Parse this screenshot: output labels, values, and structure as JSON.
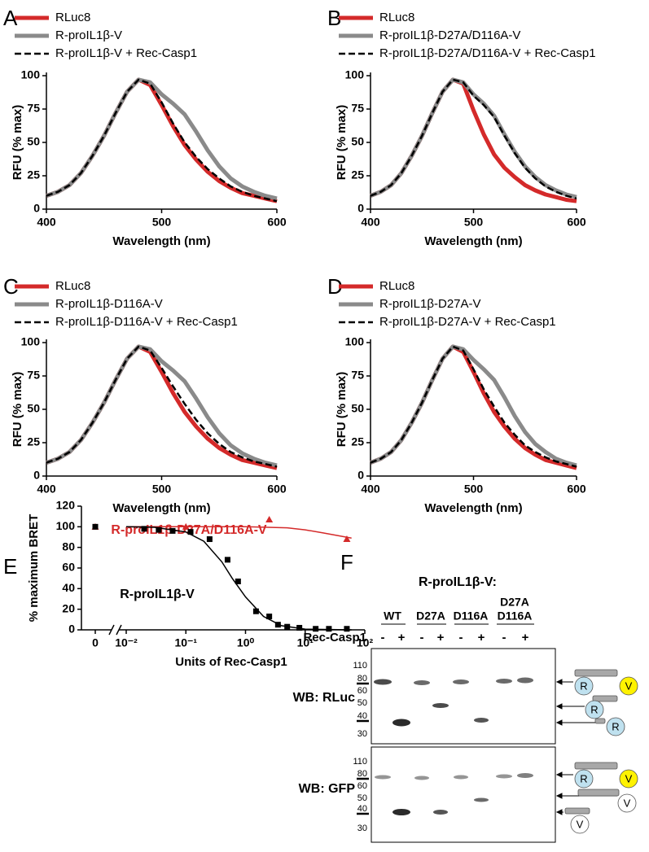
{
  "chart_data": [
    {
      "type": "line",
      "panel": "A",
      "x_label": "Wavelength (nm)",
      "y_label": "RFU (% max)",
      "x": [
        400,
        410,
        420,
        430,
        440,
        450,
        460,
        470,
        480,
        490,
        500,
        510,
        520,
        530,
        540,
        550,
        560,
        570,
        580,
        590,
        600
      ],
      "xlim": [
        400,
        600
      ],
      "xticks": [
        400,
        500,
        600
      ],
      "ylim": [
        0,
        100
      ],
      "yticks": [
        0,
        25,
        50,
        75,
        100
      ],
      "series": [
        {
          "name": "RLuc8",
          "color": "#d42a2a",
          "dash": false,
          "values": [
            10,
            13,
            18,
            27,
            40,
            55,
            72,
            88,
            97,
            93,
            78,
            62,
            48,
            37,
            28,
            21,
            16,
            12,
            10,
            8,
            6
          ]
        },
        {
          "name": "R-proIL1β-V",
          "color": "#8a8a8a",
          "dash": false,
          "values": [
            10,
            13,
            18,
            27,
            40,
            55,
            72,
            88,
            97,
            95,
            86,
            79,
            71,
            58,
            44,
            32,
            23,
            17,
            13,
            10,
            8
          ]
        },
        {
          "name": "R-proIL1β-V + Rec-Casp1",
          "color": "#000000",
          "dash": true,
          "values": [
            10,
            13,
            18,
            27,
            40,
            55,
            72,
            88,
            97,
            94,
            80,
            64,
            50,
            39,
            30,
            23,
            17,
            13,
            10,
            8,
            6
          ]
        }
      ]
    },
    {
      "type": "line",
      "panel": "B",
      "x_label": "Wavelength (nm)",
      "y_label": "RFU (% max)",
      "x": [
        400,
        410,
        420,
        430,
        440,
        450,
        460,
        470,
        480,
        490,
        500,
        510,
        520,
        530,
        540,
        550,
        560,
        570,
        580,
        590,
        600
      ],
      "xlim": [
        400,
        600
      ],
      "xticks": [
        400,
        500,
        600
      ],
      "ylim": [
        0,
        100
      ],
      "yticks": [
        0,
        25,
        50,
        75,
        100
      ],
      "series": [
        {
          "name": "RLuc8",
          "color": "#d42a2a",
          "dash": false,
          "values": [
            10,
            13,
            18,
            27,
            40,
            55,
            72,
            88,
            97,
            94,
            74,
            56,
            41,
            31,
            24,
            18,
            14,
            11,
            9,
            7,
            6
          ]
        },
        {
          "name": "R-proIL1β-D27A/D116A-V",
          "color": "#8a8a8a",
          "dash": false,
          "values": [
            10,
            13,
            18,
            27,
            40,
            55,
            72,
            88,
            97,
            95,
            86,
            79,
            70,
            56,
            43,
            32,
            24,
            18,
            14,
            11,
            9
          ]
        },
        {
          "name": "R-proIL1β-D27A/D116A-V + Rec-Casp1",
          "color": "#000000",
          "dash": true,
          "values": [
            10,
            13,
            18,
            27,
            40,
            55,
            72,
            88,
            97,
            95,
            85,
            78,
            69,
            55,
            42,
            31,
            23,
            17,
            13,
            10,
            8
          ]
        }
      ]
    },
    {
      "type": "line",
      "panel": "C",
      "x_label": "Wavelength (nm)",
      "y_label": "RFU (% max)",
      "x": [
        400,
        410,
        420,
        430,
        440,
        450,
        460,
        470,
        480,
        490,
        500,
        510,
        520,
        530,
        540,
        550,
        560,
        570,
        580,
        590,
        600
      ],
      "xlim": [
        400,
        600
      ],
      "xticks": [
        400,
        500,
        600
      ],
      "ylim": [
        0,
        100
      ],
      "yticks": [
        0,
        25,
        50,
        75,
        100
      ],
      "series": [
        {
          "name": "RLuc8",
          "color": "#d42a2a",
          "dash": false,
          "values": [
            10,
            13,
            18,
            27,
            40,
            55,
            72,
            88,
            97,
            93,
            78,
            62,
            48,
            37,
            28,
            21,
            16,
            12,
            10,
            8,
            6
          ]
        },
        {
          "name": "R-proIL1β-D116A-V",
          "color": "#8a8a8a",
          "dash": false,
          "values": [
            10,
            13,
            18,
            27,
            40,
            55,
            72,
            88,
            97,
            95,
            86,
            79,
            71,
            58,
            44,
            32,
            23,
            17,
            13,
            10,
            8
          ]
        },
        {
          "name": "R-proIL1β-D116A-V + Rec-Casp1",
          "color": "#000000",
          "dash": true,
          "values": [
            10,
            13,
            18,
            27,
            40,
            55,
            72,
            88,
            97,
            94,
            81,
            67,
            54,
            42,
            32,
            24,
            18,
            14,
            11,
            9,
            7
          ]
        }
      ]
    },
    {
      "type": "line",
      "panel": "D",
      "x_label": "Wavelength (nm)",
      "y_label": "RFU (% max)",
      "x": [
        400,
        410,
        420,
        430,
        440,
        450,
        460,
        470,
        480,
        490,
        500,
        510,
        520,
        530,
        540,
        550,
        560,
        570,
        580,
        590,
        600
      ],
      "xlim": [
        400,
        600
      ],
      "xticks": [
        400,
        500,
        600
      ],
      "ylim": [
        0,
        100
      ],
      "yticks": [
        0,
        25,
        50,
        75,
        100
      ],
      "series": [
        {
          "name": "RLuc8",
          "color": "#d42a2a",
          "dash": false,
          "values": [
            10,
            13,
            18,
            27,
            40,
            55,
            72,
            88,
            97,
            93,
            78,
            62,
            48,
            37,
            28,
            21,
            16,
            12,
            10,
            8,
            6
          ]
        },
        {
          "name": "R-proIL1β-D27A-V",
          "color": "#8a8a8a",
          "dash": false,
          "values": [
            10,
            13,
            18,
            27,
            40,
            55,
            72,
            88,
            97,
            95,
            87,
            80,
            72,
            59,
            45,
            33,
            24,
            18,
            13,
            10,
            8
          ]
        },
        {
          "name": "R-proIL1β-D27A-V + Rec-Casp1",
          "color": "#000000",
          "dash": true,
          "values": [
            10,
            13,
            18,
            27,
            40,
            55,
            72,
            88,
            97,
            94,
            80,
            65,
            52,
            40,
            31,
            23,
            18,
            14,
            11,
            9,
            7
          ]
        }
      ]
    },
    {
      "type": "scatter",
      "panel": "E",
      "x_label": "Units of Rec-Casp1",
      "y_label": "% maximum BRET",
      "xscale": "log",
      "xlim": [
        0.01,
        100
      ],
      "xticks": [
        0,
        {
          "value": 0.01,
          "label": "10⁻²"
        },
        {
          "value": 0.1,
          "label": "10⁻¹"
        },
        {
          "value": 1,
          "label": "10⁰"
        },
        {
          "value": 10,
          "label": "10¹"
        },
        {
          "value": 100,
          "label": "10²"
        }
      ],
      "ylim": [
        0,
        120
      ],
      "yticks": [
        0,
        20,
        40,
        60,
        80,
        100,
        120
      ],
      "series": [
        {
          "name": "R-proIL1β-D27A/D116A-V",
          "color": "#d42a2a",
          "marker": "triangle",
          "x": [
            0,
            0.1,
            2.5,
            50
          ],
          "values": [
            100,
            100,
            107,
            88
          ],
          "fit_x": [
            0.01,
            0.1,
            1,
            5,
            10,
            20,
            60
          ],
          "fit_values": [
            100,
            100,
            100,
            99,
            97,
            94,
            89
          ]
        },
        {
          "name": "R-proIL1β-V",
          "color": "#000000",
          "marker": "square",
          "x": [
            0,
            0.02,
            0.035,
            0.06,
            0.12,
            0.25,
            0.5,
            0.75,
            1.5,
            2.5,
            3.5,
            5,
            8,
            15,
            25,
            50
          ],
          "values": [
            100,
            98,
            97,
            96,
            95,
            88,
            68,
            47,
            18,
            13,
            5,
            3,
            2,
            1,
            1,
            1
          ],
          "fit_x": [
            0.01,
            0.03,
            0.1,
            0.2,
            0.4,
            0.6,
            1,
            2,
            4,
            10,
            60
          ],
          "fit_values": [
            100,
            99.5,
            95,
            86,
            66,
            50,
            32,
            13,
            4,
            0.7,
            0
          ]
        }
      ]
    }
  ],
  "blot": {
    "panel": "F",
    "title": "R-proIL1β-V:",
    "groups": [
      [
        "WT"
      ],
      [
        "D27A"
      ],
      [
        "D116A"
      ],
      [
        "D27A",
        "D116A"
      ]
    ],
    "treatment": "Rec-Casp1",
    "signs": [
      "-",
      "+",
      "-",
      "+",
      "-",
      "+",
      "-",
      "+"
    ],
    "panels": [
      {
        "label": "WB: RLuc",
        "markers": [
          110,
          80,
          60,
          50,
          40,
          30
        ]
      },
      {
        "label": "WB: GFP",
        "markers": [
          110,
          80,
          60,
          50,
          40,
          30
        ]
      }
    ],
    "icon_labels": [
      "R",
      "V"
    ]
  }
}
